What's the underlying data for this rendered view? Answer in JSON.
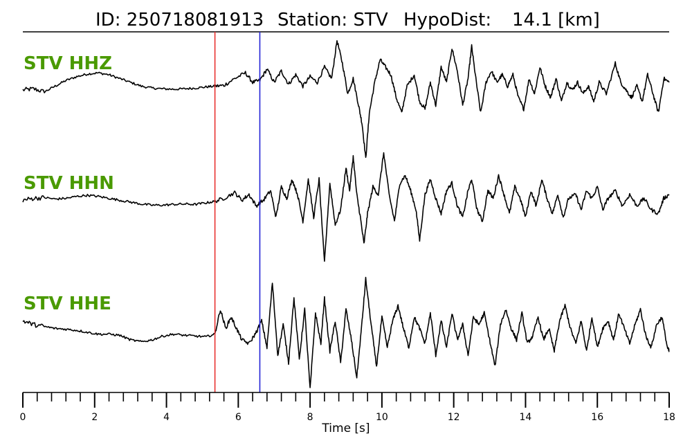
{
  "title": {
    "id_label": "ID: 250718081913",
    "station_label": "Station: STV",
    "hypodist_label": "HypoDist:",
    "hypodist_value": "14.1 [km]"
  },
  "chart_data": {
    "type": "line",
    "xlabel": "Time [s]",
    "xlim": [
      0,
      18
    ],
    "major_ticks": [
      0,
      2,
      4,
      6,
      8,
      10,
      12,
      14,
      16,
      18
    ],
    "minor_tick_step": 0.4,
    "picks": [
      {
        "phase": "P",
        "time": 5.35,
        "color": "#e8312f"
      },
      {
        "phase": "S",
        "time": 6.6,
        "color": "#2323d6"
      }
    ],
    "label_color": "#4a9a00",
    "series": [
      {
        "name": "STV HHZ",
        "waveform": [
          [
            0,
            0
          ],
          [
            0.3,
            0.03
          ],
          [
            0.6,
            -0.05
          ],
          [
            0.9,
            0.1
          ],
          [
            1.2,
            0.25
          ],
          [
            1.5,
            0.35
          ],
          [
            1.8,
            0.42
          ],
          [
            2.1,
            0.45
          ],
          [
            2.4,
            0.4
          ],
          [
            2.7,
            0.3
          ],
          [
            3,
            0.2
          ],
          [
            3.3,
            0.1
          ],
          [
            3.6,
            0.05
          ],
          [
            3.9,
            0.03
          ],
          [
            4.2,
            0.02
          ],
          [
            4.5,
            0.03
          ],
          [
            4.8,
            0.05
          ],
          [
            5.1,
            0.08
          ],
          [
            5.35,
            0.1
          ],
          [
            5.6,
            0.12
          ],
          [
            5.9,
            0.3
          ],
          [
            6.2,
            0.45
          ],
          [
            6.4,
            0.2
          ],
          [
            6.6,
            0.25
          ],
          [
            6.8,
            0.55
          ],
          [
            7,
            0.2
          ],
          [
            7.2,
            0.5
          ],
          [
            7.4,
            0.15
          ],
          [
            7.6,
            0.4
          ],
          [
            7.8,
            0.1
          ],
          [
            8,
            0.35
          ],
          [
            8.2,
            0.2
          ],
          [
            8.4,
            0.6
          ],
          [
            8.6,
            0.3
          ],
          [
            8.75,
            1.3
          ],
          [
            8.9,
            0.7
          ],
          [
            9.05,
            -0.1
          ],
          [
            9.2,
            0.3
          ],
          [
            9.35,
            -0.4
          ],
          [
            9.45,
            -0.9
          ],
          [
            9.55,
            -1.8
          ],
          [
            9.65,
            -0.6
          ],
          [
            9.8,
            0.2
          ],
          [
            9.95,
            0.8
          ],
          [
            10.1,
            0.6
          ],
          [
            10.25,
            0.4
          ],
          [
            10.4,
            -0.2
          ],
          [
            10.55,
            -0.6
          ],
          [
            10.7,
            0.1
          ],
          [
            10.9,
            0.4
          ],
          [
            11.05,
            -0.3
          ],
          [
            11.2,
            -0.5
          ],
          [
            11.35,
            0.2
          ],
          [
            11.5,
            -0.4
          ],
          [
            11.65,
            0.6
          ],
          [
            11.8,
            0.2
          ],
          [
            11.95,
            1.1
          ],
          [
            12.1,
            0.5
          ],
          [
            12.25,
            -0.4
          ],
          [
            12.4,
            0.3
          ],
          [
            12.5,
            1.15
          ],
          [
            12.6,
            0.4
          ],
          [
            12.75,
            -0.6
          ],
          [
            12.9,
            0.2
          ],
          [
            13.05,
            0.5
          ],
          [
            13.2,
            0.2
          ],
          [
            13.35,
            0.4
          ],
          [
            13.5,
            0.1
          ],
          [
            13.65,
            0.4
          ],
          [
            13.8,
            -0.2
          ],
          [
            13.95,
            -0.5
          ],
          [
            14.1,
            0.3
          ],
          [
            14.25,
            -0.1
          ],
          [
            14.4,
            0.6
          ],
          [
            14.55,
            0.1
          ],
          [
            14.7,
            -0.2
          ],
          [
            14.85,
            0.3
          ],
          [
            15,
            -0.3
          ],
          [
            15.15,
            0.2
          ],
          [
            15.3,
            0
          ],
          [
            15.45,
            0.2
          ],
          [
            15.6,
            -0.1
          ],
          [
            15.75,
            0.1
          ],
          [
            15.9,
            -0.3
          ],
          [
            16.05,
            0.2
          ],
          [
            16.25,
            -0.1
          ],
          [
            16.5,
            0.7
          ],
          [
            16.65,
            0.2
          ],
          [
            16.8,
            0
          ],
          [
            16.95,
            -0.2
          ],
          [
            17.1,
            0.1
          ],
          [
            17.25,
            -0.3
          ],
          [
            17.4,
            0.4
          ],
          [
            17.55,
            -0.1
          ],
          [
            17.7,
            -0.6
          ],
          [
            17.85,
            0.3
          ],
          [
            18,
            0.2
          ]
        ]
      },
      {
        "name": "STV HHN",
        "waveform": [
          [
            0,
            0.05
          ],
          [
            0.3,
            0.1
          ],
          [
            0.6,
            0.12
          ],
          [
            0.9,
            0.08
          ],
          [
            1.2,
            0.1
          ],
          [
            1.5,
            0.15
          ],
          [
            1.8,
            0.18
          ],
          [
            2.1,
            0.15
          ],
          [
            2.4,
            0.1
          ],
          [
            2.7,
            0.05
          ],
          [
            3,
            0
          ],
          [
            3.3,
            -0.05
          ],
          [
            3.6,
            -0.08
          ],
          [
            3.9,
            -0.08
          ],
          [
            4.2,
            -0.06
          ],
          [
            4.5,
            -0.05
          ],
          [
            4.8,
            -0.06
          ],
          [
            5.1,
            -0.02
          ],
          [
            5.35,
            0.02
          ],
          [
            5.6,
            0.1
          ],
          [
            5.9,
            0.25
          ],
          [
            6.1,
            0.05
          ],
          [
            6.3,
            0.2
          ],
          [
            6.5,
            -0.1
          ],
          [
            6.7,
            0.05
          ],
          [
            6.9,
            0.3
          ],
          [
            7.05,
            -0.4
          ],
          [
            7.2,
            0.4
          ],
          [
            7.35,
            0.1
          ],
          [
            7.5,
            0.6
          ],
          [
            7.65,
            0.2
          ],
          [
            7.8,
            -0.5
          ],
          [
            7.95,
            0.6
          ],
          [
            8.1,
            -0.4
          ],
          [
            8.25,
            0.6
          ],
          [
            8.4,
            -1.6
          ],
          [
            8.55,
            0.5
          ],
          [
            8.7,
            -0.6
          ],
          [
            8.85,
            -0.2
          ],
          [
            9,
            0.9
          ],
          [
            9.1,
            0.3
          ],
          [
            9.2,
            1.2
          ],
          [
            9.3,
            0.2
          ],
          [
            9.4,
            -0.4
          ],
          [
            9.5,
            -1.1
          ],
          [
            9.6,
            -0.3
          ],
          [
            9.75,
            0.4
          ],
          [
            9.9,
            0.2
          ],
          [
            10.05,
            1.3
          ],
          [
            10.2,
            0.2
          ],
          [
            10.35,
            -0.5
          ],
          [
            10.5,
            0.5
          ],
          [
            10.65,
            0.7
          ],
          [
            10.8,
            0.3
          ],
          [
            10.95,
            -0.2
          ],
          [
            11.05,
            -1.0
          ],
          [
            11.2,
            0.2
          ],
          [
            11.35,
            0.6
          ],
          [
            11.5,
            0.1
          ],
          [
            11.65,
            -0.3
          ],
          [
            11.8,
            0.3
          ],
          [
            11.95,
            0.5
          ],
          [
            12.1,
            -0.1
          ],
          [
            12.25,
            -0.4
          ],
          [
            12.4,
            0.3
          ],
          [
            12.5,
            0.6
          ],
          [
            12.65,
            -0.2
          ],
          [
            12.8,
            -0.5
          ],
          [
            12.95,
            0.3
          ],
          [
            13.1,
            0.1
          ],
          [
            13.25,
            0.7
          ],
          [
            13.4,
            0.2
          ],
          [
            13.55,
            -0.3
          ],
          [
            13.7,
            0.4
          ],
          [
            13.85,
            0.1
          ],
          [
            14,
            -0.4
          ],
          [
            14.15,
            0.3
          ],
          [
            14.3,
            -0.1
          ],
          [
            14.45,
            0.6
          ],
          [
            14.6,
            0.1
          ],
          [
            14.75,
            -0.3
          ],
          [
            14.9,
            0.2
          ],
          [
            15.05,
            -0.4
          ],
          [
            15.2,
            0.1
          ],
          [
            15.4,
            0.2
          ],
          [
            15.55,
            -0.2
          ],
          [
            15.7,
            0.3
          ],
          [
            15.85,
            0.1
          ],
          [
            16,
            0.4
          ],
          [
            16.15,
            -0.2
          ],
          [
            16.3,
            0.1
          ],
          [
            16.5,
            0.3
          ],
          [
            16.7,
            -0.1
          ],
          [
            16.9,
            0.2
          ],
          [
            17.1,
            -0.1
          ],
          [
            17.3,
            0.1
          ],
          [
            17.5,
            -0.2
          ],
          [
            17.7,
            -0.3
          ],
          [
            17.85,
            0.1
          ],
          [
            18,
            0.2
          ]
        ]
      },
      {
        "name": "STV HHE",
        "waveform": [
          [
            0,
            0.3
          ],
          [
            0.3,
            0.2
          ],
          [
            0.6,
            0.15
          ],
          [
            0.9,
            0.1
          ],
          [
            1.2,
            0.08
          ],
          [
            1.5,
            0.05
          ],
          [
            1.8,
            0
          ],
          [
            2.1,
            -0.05
          ],
          [
            2.4,
            -0.05
          ],
          [
            2.7,
            -0.08
          ],
          [
            3,
            -0.2
          ],
          [
            3.3,
            -0.25
          ],
          [
            3.6,
            -0.2
          ],
          [
            3.9,
            -0.1
          ],
          [
            4.2,
            -0.05
          ],
          [
            4.5,
            -0.08
          ],
          [
            4.8,
            -0.1
          ],
          [
            5.1,
            -0.12
          ],
          [
            5.35,
            -0.05
          ],
          [
            5.5,
            0.6
          ],
          [
            5.65,
            0.1
          ],
          [
            5.8,
            0.4
          ],
          [
            5.95,
            0.1
          ],
          [
            6.1,
            -0.2
          ],
          [
            6.3,
            -0.3
          ],
          [
            6.5,
            0
          ],
          [
            6.65,
            0.3
          ],
          [
            6.8,
            -0.4
          ],
          [
            6.95,
            1.3
          ],
          [
            7.1,
            -0.6
          ],
          [
            7.25,
            0.2
          ],
          [
            7.4,
            -0.8
          ],
          [
            7.55,
            0.9
          ],
          [
            7.7,
            -0.7
          ],
          [
            7.85,
            0.6
          ],
          [
            8,
            -1.5
          ],
          [
            8.15,
            0.5
          ],
          [
            8.3,
            -0.3
          ],
          [
            8.4,
            0.9
          ],
          [
            8.55,
            -0.5
          ],
          [
            8.7,
            0.3
          ],
          [
            8.85,
            -0.8
          ],
          [
            9,
            0.6
          ],
          [
            9.15,
            -0.2
          ],
          [
            9.3,
            -1.2
          ],
          [
            9.45,
            0.3
          ],
          [
            9.55,
            1.4
          ],
          [
            9.7,
            0.2
          ],
          [
            9.85,
            -0.9
          ],
          [
            10,
            0.4
          ],
          [
            10.15,
            -0.4
          ],
          [
            10.3,
            0.3
          ],
          [
            10.45,
            0.7
          ],
          [
            10.6,
            0.1
          ],
          [
            10.75,
            -0.4
          ],
          [
            10.9,
            0.4
          ],
          [
            11.05,
            0.1
          ],
          [
            11.2,
            -0.3
          ],
          [
            11.35,
            0.5
          ],
          [
            11.5,
            -0.6
          ],
          [
            11.65,
            0.3
          ],
          [
            11.8,
            -0.4
          ],
          [
            11.95,
            0.5
          ],
          [
            12.1,
            -0.2
          ],
          [
            12.25,
            0.2
          ],
          [
            12.4,
            -0.6
          ],
          [
            12.55,
            0.4
          ],
          [
            12.7,
            0.2
          ],
          [
            12.85,
            0.5
          ],
          [
            13,
            -0.2
          ],
          [
            13.15,
            -0.9
          ],
          [
            13.3,
            0.2
          ],
          [
            13.45,
            0.6
          ],
          [
            13.6,
            0.1
          ],
          [
            13.75,
            -0.2
          ],
          [
            13.9,
            0.5
          ],
          [
            14.05,
            -0.3
          ],
          [
            14.2,
            -0.1
          ],
          [
            14.35,
            0.4
          ],
          [
            14.5,
            -0.2
          ],
          [
            14.65,
            0.1
          ],
          [
            14.8,
            -0.5
          ],
          [
            14.95,
            0.3
          ],
          [
            15.1,
            0.7
          ],
          [
            15.25,
            0.1
          ],
          [
            15.4,
            -0.3
          ],
          [
            15.55,
            0.3
          ],
          [
            15.7,
            -0.5
          ],
          [
            15.85,
            0.4
          ],
          [
            16,
            -0.4
          ],
          [
            16.15,
            0.1
          ],
          [
            16.3,
            0.3
          ],
          [
            16.45,
            -0.2
          ],
          [
            16.6,
            0.5
          ],
          [
            16.75,
            0.1
          ],
          [
            16.9,
            -0.3
          ],
          [
            17.05,
            0.2
          ],
          [
            17.2,
            0.6
          ],
          [
            17.35,
            -0.1
          ],
          [
            17.5,
            -0.4
          ],
          [
            17.65,
            0.2
          ],
          [
            17.8,
            0.4
          ],
          [
            17.95,
            -0.4
          ],
          [
            18,
            -0.5
          ]
        ]
      }
    ]
  }
}
